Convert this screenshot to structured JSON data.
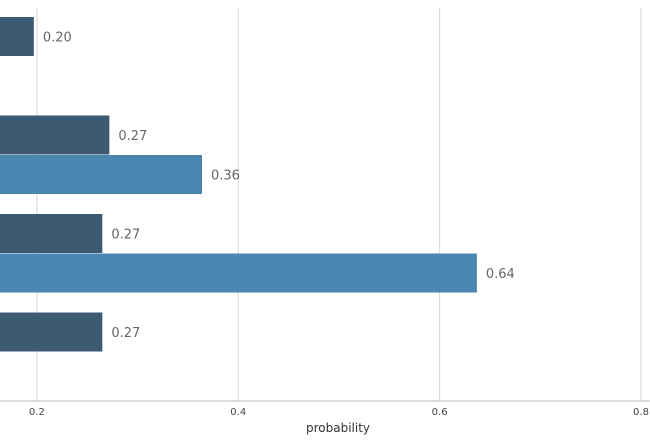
{
  "chart_data": {
    "type": "bar",
    "orientation": "horizontal",
    "xlabel": "probability",
    "xlim": [
      0.0,
      0.8
    ],
    "x_ticks": [
      0.2,
      0.4,
      0.6,
      0.8
    ],
    "x_tick_labels": [
      "0.2",
      "0.4",
      "0.6",
      "0.8"
    ],
    "grid": "vertical",
    "groups": 4,
    "series": [
      {
        "color": "#3d5a73",
        "values": [
          0.197,
          0.272,
          0.265,
          0.265
        ],
        "labels": [
          "0.20",
          "0.27",
          "0.27",
          "0.27"
        ]
      },
      {
        "color": "#4a86b0",
        "values": [
          null,
          0.364,
          0.637,
          null
        ],
        "labels": [
          "",
          "0.36",
          "0.64",
          ""
        ]
      }
    ]
  }
}
